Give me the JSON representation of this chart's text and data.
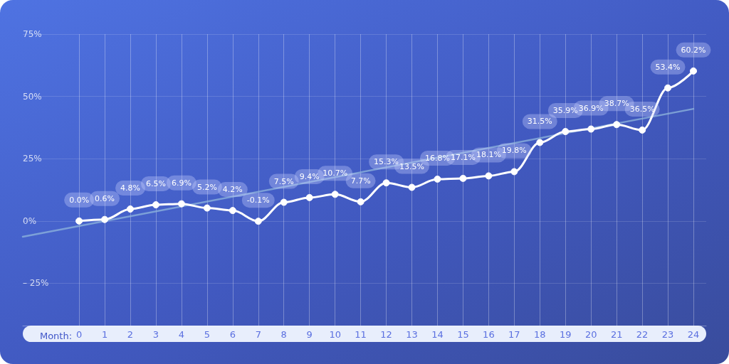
{
  "chart_data": {
    "type": "line",
    "xlabel": "Month:",
    "xlim": [
      -2.2,
      24.5
    ],
    "xticks": [
      0,
      1,
      2,
      3,
      4,
      5,
      6,
      7,
      8,
      9,
      10,
      11,
      12,
      13,
      14,
      15,
      16,
      17,
      18,
      19,
      20,
      21,
      22,
      23,
      24
    ],
    "ylim": [
      -42,
      75
    ],
    "yticks": [
      {
        "value": -25,
        "label": "– 25%"
      },
      {
        "value": 0,
        "label": "0%"
      },
      {
        "value": 25,
        "label": "25%"
      },
      {
        "value": 50,
        "label": "50%"
      },
      {
        "value": 75,
        "label": "75%"
      }
    ],
    "grid": true,
    "series": [
      {
        "color": "#ffffff",
        "marker": "circle",
        "x": [
          0,
          1,
          2,
          3,
          4,
          5,
          6,
          7,
          8,
          9,
          10,
          11,
          12,
          13,
          14,
          15,
          16,
          17,
          18,
          19,
          20,
          21,
          22,
          23,
          24
        ],
        "values": [
          0.0,
          0.6,
          4.8,
          6.5,
          6.9,
          5.2,
          4.2,
          -0.1,
          7.5,
          9.4,
          10.7,
          7.7,
          15.3,
          13.5,
          16.8,
          17.1,
          18.1,
          19.8,
          31.5,
          35.9,
          36.9,
          38.7,
          36.5,
          53.4,
          60.2
        ],
        "value_labels": [
          "0.0%",
          "0.6%",
          "4.8%",
          "6.5%",
          "6.9%",
          "5.2%",
          "4.2%",
          "-0.1%",
          "7.5%",
          "9.4%",
          "10.7%",
          "7.7%",
          "15.3%",
          "13.5%",
          "16.8%",
          "17.1%",
          "18.1%",
          "19.8%",
          "31.5%",
          "35.9%",
          "36.9%",
          "38.7%",
          "36.5%",
          "53.4%",
          "60.2%"
        ]
      },
      {
        "type": "line",
        "color": "#8fb6dc",
        "marker": "none",
        "x": [
          -2.2,
          24
        ],
        "values": [
          -6.3,
          45.0
        ]
      }
    ]
  }
}
